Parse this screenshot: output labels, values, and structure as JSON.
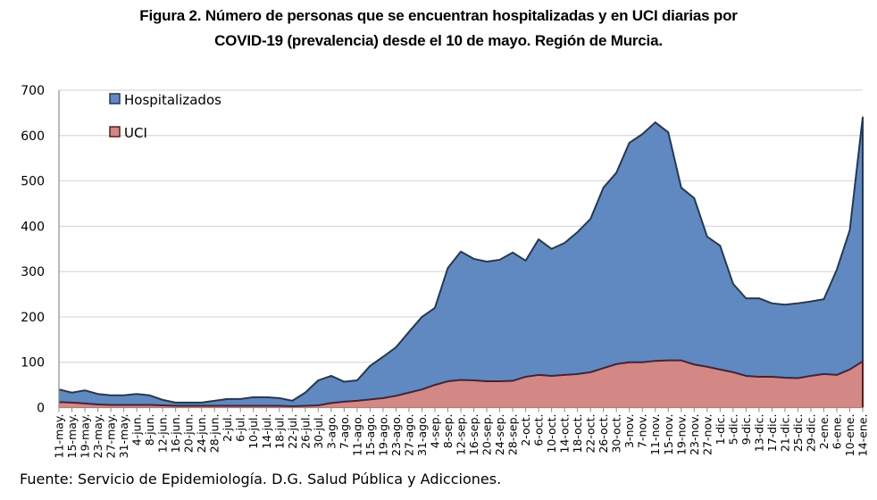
{
  "chart_data": {
    "type": "area",
    "title_line1": "Figura 2. Número de personas que se encuentran hospitalizadas y en UCI diarias por",
    "title_line2": "COVID-19 (prevalencia) desde el 10 de mayo. Región de Murcia.",
    "xlabel": "",
    "ylabel": "",
    "ylim": [
      0,
      700
    ],
    "yticks": [
      0,
      100,
      200,
      300,
      400,
      500,
      600,
      700
    ],
    "grid": true,
    "legend_position": "top-left",
    "categories": [
      "11-may.",
      "15-may.",
      "19-may.",
      "23-may.",
      "27-may.",
      "31-may.",
      "4-jun.",
      "8-jun.",
      "12-jun.",
      "16-jun.",
      "20-jun.",
      "24-jun.",
      "28-jun.",
      "2-jul.",
      "6-jul.",
      "10-jul.",
      "14-jul.",
      "18-jul.",
      "22-jul.",
      "26-jul.",
      "30-jul.",
      "3-ago.",
      "7-ago.",
      "11-ago.",
      "15-ago.",
      "19-ago.",
      "23-ago.",
      "27-ago.",
      "31-ago.",
      "4-sep.",
      "8-sep.",
      "12-sep.",
      "16-sep.",
      "20-sep.",
      "24-sep.",
      "28-sep.",
      "2-oct.",
      "6-oct.",
      "10-oct.",
      "14-oct.",
      "18-oct.",
      "22-oct.",
      "26-oct.",
      "30-oct.",
      "3-nov.",
      "7-nov.",
      "11-nov.",
      "15-nov.",
      "19-nov.",
      "23-nov.",
      "27-nov.",
      "1-dic.",
      "5-dic.",
      "9-dic.",
      "13-dic.",
      "17-dic.",
      "21-dic.",
      "25-dic.",
      "29-dic.",
      "2-ene.",
      "6-ene.",
      "10-ene.",
      "14-ene."
    ],
    "series": [
      {
        "name": "Hospitalizados",
        "color": "#6089c1",
        "line_color": "#1f3a5a",
        "values": [
          40,
          33,
          38,
          30,
          27,
          27,
          30,
          27,
          17,
          11,
          11,
          11,
          15,
          19,
          19,
          23,
          23,
          21,
          15,
          33,
          60,
          70,
          57,
          60,
          92,
          112,
          133,
          167,
          200,
          220,
          308,
          344,
          328,
          322,
          326,
          342,
          324,
          371,
          350,
          363,
          387,
          416,
          485,
          518,
          584,
          603,
          629,
          607,
          485,
          462,
          377,
          357,
          273,
          241,
          241,
          230,
          227,
          230,
          234,
          239,
          304,
          391,
          640
        ]
      },
      {
        "name": "UCI",
        "color": "#d38886",
        "line_color": "#5a1c1c",
        "values": [
          12,
          11,
          9,
          7,
          6,
          6,
          6,
          6,
          5,
          4,
          4,
          4,
          4,
          4,
          4,
          4,
          4,
          4,
          3,
          4,
          5,
          10,
          13,
          15,
          18,
          21,
          26,
          33,
          40,
          50,
          58,
          61,
          60,
          58,
          58,
          59,
          68,
          72,
          70,
          72,
          74,
          78,
          87,
          96,
          100,
          100,
          103,
          104,
          104,
          95,
          90,
          84,
          78,
          70,
          68,
          68,
          66,
          65,
          70,
          74,
          72,
          84,
          102
        ]
      }
    ]
  },
  "source": "Fuente: Servicio de Epidemiología. D.G. Salud Pública y Adicciones."
}
